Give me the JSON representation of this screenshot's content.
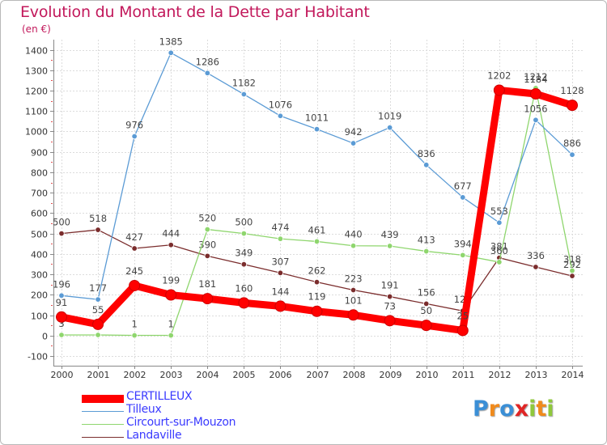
{
  "title": "Evolution du Montant de la Dette par Habitant",
  "subtitle": "(en €)",
  "brand": {
    "letters": [
      "P",
      "r",
      "o",
      "x",
      "i",
      "t",
      "i"
    ],
    "colors": [
      "#3b8fd6",
      "#f08a1c",
      "#3b8fd6",
      "#e02525",
      "#8fc83c",
      "#f08a1c",
      "#8fc83c"
    ]
  },
  "chart_data": {
    "type": "line",
    "x": [
      "2000",
      "2001",
      "2002",
      "2003",
      "2004",
      "2005",
      "2006",
      "2007",
      "2008",
      "2009",
      "2010",
      "2011",
      "2012",
      "2013",
      "2014"
    ],
    "ylim": [
      -100,
      1400
    ],
    "yticks": [
      -100,
      0,
      100,
      200,
      300,
      400,
      500,
      600,
      700,
      800,
      900,
      1000,
      1100,
      1200,
      1300,
      1400
    ],
    "grid": true,
    "series": [
      {
        "name": "Tilleux",
        "color": "#5b9bd5",
        "values": [
          196,
          177,
          976,
          1385,
          1286,
          1182,
          1076,
          1011,
          942,
          1019,
          836,
          677,
          553,
          1056,
          886
        ]
      },
      {
        "name": "Circourt-sur-Mouzon",
        "color": "#8fd66e",
        "values": [
          3,
          3,
          1,
          1,
          520,
          500,
          474,
          461,
          440,
          439,
          413,
          394,
          360,
          1212,
          318
        ]
      },
      {
        "name": "Landaville",
        "color": "#7b2d2d",
        "values": [
          500,
          518,
          427,
          444,
          390,
          349,
          307,
          262,
          223,
          191,
          156,
          121,
          381,
          336,
          292
        ]
      },
      {
        "name": "CERTILLEUX",
        "color": "#ff0000",
        "values": [
          91,
          55,
          245,
          199,
          181,
          160,
          144,
          119,
          101,
          73,
          50,
          25,
          1202,
          1184,
          1128
        ]
      }
    ],
    "legend": {
      "placement": "bottom-left",
      "order": [
        "CERTILLEUX",
        "Tilleux",
        "Circourt-sur-Mouzon",
        "Landaville"
      ]
    }
  }
}
